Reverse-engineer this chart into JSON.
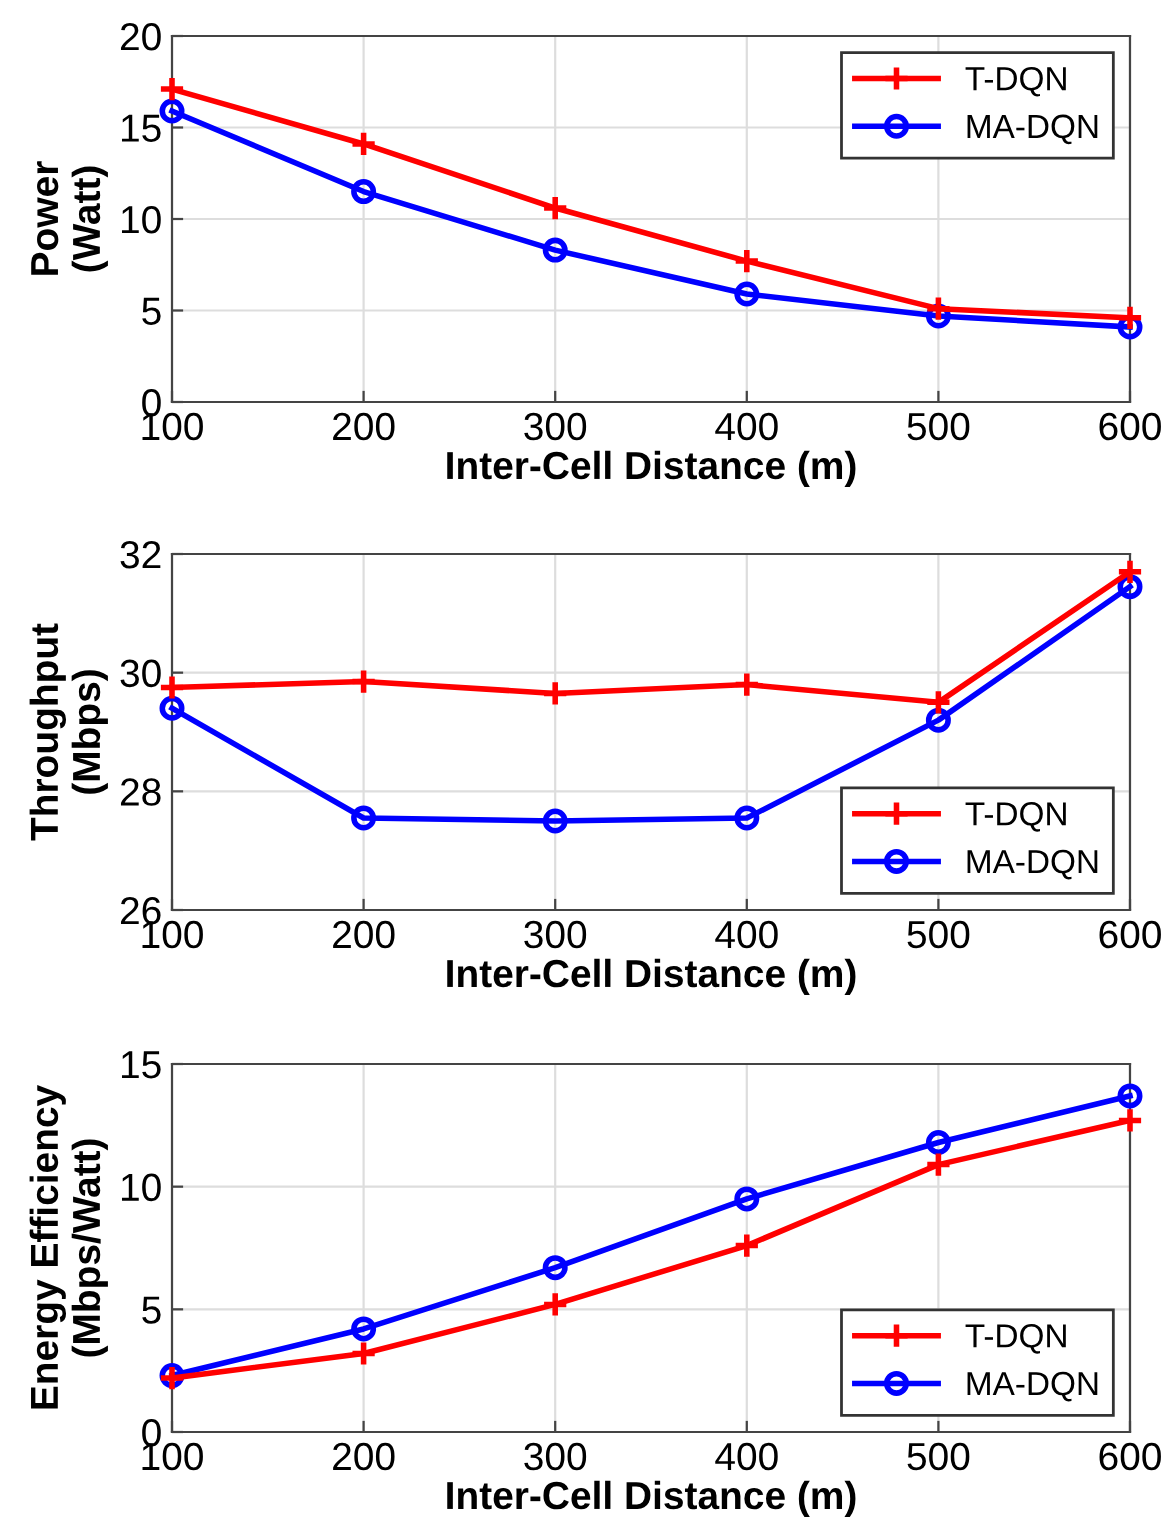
{
  "chart_data": [
    {
      "type": "line",
      "xlabel": "Inter-Cell Distance (m)",
      "ylabel": "Power\n(Watt)",
      "x": [
        100,
        200,
        300,
        400,
        500,
        600
      ],
      "series": [
        {
          "name": "T-DQN",
          "color": "#ff0000",
          "marker": "cross",
          "values": [
            17.1,
            14.1,
            10.6,
            7.7,
            5.1,
            4.6
          ]
        },
        {
          "name": "MA-DQN",
          "color": "#0000ff",
          "marker": "circle",
          "values": [
            15.9,
            11.5,
            8.3,
            5.9,
            4.7,
            4.1
          ]
        }
      ],
      "xlim": [
        100,
        600
      ],
      "xticks": [
        100,
        200,
        300,
        400,
        500,
        600
      ],
      "ylim": [
        0,
        20
      ],
      "yticks": [
        0,
        5,
        10,
        15,
        20
      ],
      "grid": true,
      "legend": "top right"
    },
    {
      "type": "line",
      "xlabel": "Inter-Cell Distance (m)",
      "ylabel": "Throughput\n(Mbps)",
      "x": [
        100,
        200,
        300,
        400,
        500,
        600
      ],
      "series": [
        {
          "name": "T-DQN",
          "color": "#ff0000",
          "marker": "cross",
          "values": [
            29.75,
            29.85,
            29.65,
            29.8,
            29.5,
            31.7
          ]
        },
        {
          "name": "MA-DQN",
          "color": "#0000ff",
          "marker": "circle",
          "values": [
            29.4,
            27.55,
            27.5,
            27.55,
            29.2,
            31.45
          ]
        }
      ],
      "xlim": [
        100,
        600
      ],
      "xticks": [
        100,
        200,
        300,
        400,
        500,
        600
      ],
      "ylim": [
        26,
        32
      ],
      "yticks": [
        26,
        28,
        30,
        32
      ],
      "grid": true,
      "legend": "bottom right"
    },
    {
      "type": "line",
      "xlabel": "Inter-Cell Distance (m)",
      "ylabel": "Energy Efficiency\n(Mbps/Watt)",
      "x": [
        100,
        200,
        300,
        400,
        500,
        600
      ],
      "series": [
        {
          "name": "T-DQN",
          "color": "#ff0000",
          "marker": "cross",
          "values": [
            2.2,
            3.2,
            5.2,
            7.6,
            10.9,
            12.7
          ]
        },
        {
          "name": "MA-DQN",
          "color": "#0000ff",
          "marker": "circle",
          "values": [
            2.3,
            4.2,
            6.7,
            9.5,
            11.8,
            13.7
          ]
        }
      ],
      "xlim": [
        100,
        600
      ],
      "xticks": [
        100,
        200,
        300,
        400,
        500,
        600
      ],
      "ylim": [
        0,
        15
      ],
      "yticks": [
        0,
        5,
        10,
        15
      ],
      "grid": true,
      "legend": "bottom right"
    }
  ]
}
